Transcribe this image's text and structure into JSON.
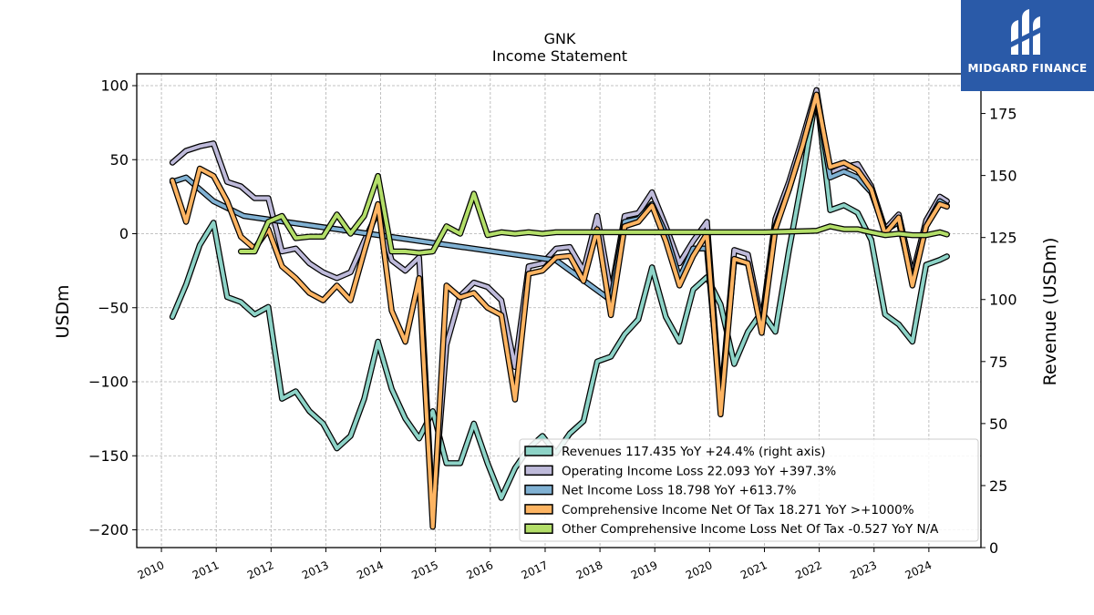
{
  "chart_data": {
    "type": "line",
    "title": "GNK",
    "subtitle": "Income Statement",
    "ylabel": "USDm",
    "y2label": "Revenue (USDm)",
    "ylim": [
      -212,
      108
    ],
    "y2lim": [
      0,
      191
    ],
    "yticks": [
      100,
      50,
      0,
      -50,
      -100,
      -150,
      -200
    ],
    "yticklabels": [
      "100",
      "50",
      "0",
      "−50",
      "−100",
      "−150",
      "−200"
    ],
    "y2ticks": [
      175,
      150,
      125,
      100,
      75,
      50,
      25,
      0
    ],
    "xlim": [
      2009.55,
      2024.95
    ],
    "xticks": [
      "2010",
      "2011",
      "2012",
      "2013",
      "2014",
      "2015",
      "2016",
      "2017",
      "2018",
      "2019",
      "2020",
      "2021",
      "2022",
      "2023",
      "2024"
    ],
    "grid": true,
    "legend_position": "lower right",
    "series": [
      {
        "name": "Revenues  117.435 YoY +24.4% (right axis)",
        "color": "#8dd3c7",
        "axis": "right",
        "x": [
          2010.2,
          2010.45,
          2010.7,
          2010.95,
          2011.2,
          2011.45,
          2011.7,
          2011.95,
          2012.2,
          2012.45,
          2012.7,
          2012.95,
          2013.2,
          2013.45,
          2013.7,
          2013.95,
          2014.2,
          2014.45,
          2014.7,
          2014.95,
          2015.2,
          2015.45,
          2015.7,
          2015.95,
          2016.2,
          2016.45,
          2016.7,
          2016.95,
          2017.2,
          2017.45,
          2017.7,
          2017.95,
          2018.2,
          2018.45,
          2018.7,
          2018.95,
          2019.2,
          2019.45,
          2019.7,
          2019.95,
          2020.2,
          2020.45,
          2020.7,
          2020.95,
          2021.2,
          2021.45,
          2021.7,
          2021.95,
          2022.2,
          2022.45,
          2022.7,
          2022.95,
          2023.2,
          2023.45,
          2023.7,
          2023.95,
          2024.2,
          2024.33
        ],
        "values": [
          93,
          106,
          122,
          131,
          101,
          99,
          94,
          97,
          60,
          63,
          55,
          50,
          40,
          45,
          60,
          83,
          64,
          52,
          44,
          55,
          34,
          34,
          50,
          34,
          20,
          32,
          40,
          45,
          38,
          46,
          51,
          75,
          77,
          86,
          92,
          113,
          93,
          83,
          104,
          109,
          98,
          74,
          87,
          95,
          87,
          120,
          150,
          183,
          136,
          138,
          135,
          124,
          94,
          90,
          83,
          114,
          116,
          117.4
        ]
      },
      {
        "name": "Operating Income Loss  22.093 YoY +397.3%",
        "color": "#bebada",
        "axis": "left",
        "x": [
          2010.2,
          2010.45,
          2010.7,
          2010.95,
          2011.2,
          2011.45,
          2011.7,
          2011.95,
          2012.2,
          2012.45,
          2012.7,
          2012.95,
          2013.2,
          2013.45,
          2013.7,
          2013.95,
          2014.2,
          2014.45,
          2014.7,
          2014.95,
          2015.2,
          2015.45,
          2015.7,
          2015.95,
          2016.2,
          2016.45,
          2016.7,
          2016.95,
          2017.2,
          2017.45,
          2017.7,
          2017.95,
          2018.2,
          2018.45,
          2018.7,
          2018.95,
          2019.2,
          2019.45,
          2019.7,
          2019.95,
          2020.2,
          2020.45,
          2020.7,
          2020.95,
          2021.2,
          2021.45,
          2021.7,
          2021.95,
          2022.2,
          2022.45,
          2022.7,
          2022.95,
          2023.2,
          2023.45,
          2023.7,
          2023.95,
          2024.2,
          2024.33
        ],
        "values": [
          48,
          56,
          59,
          61,
          35,
          32,
          24,
          24,
          -12,
          -10,
          -20,
          -26,
          -30,
          -26,
          -5,
          15,
          -18,
          -25,
          -16,
          -190,
          -75,
          -42,
          -33,
          -36,
          -45,
          -90,
          -22,
          -20,
          -10,
          -9,
          -25,
          12,
          -40,
          12,
          14,
          28,
          5,
          -20,
          -5,
          8,
          -115,
          -11,
          -14,
          -60,
          10,
          35,
          65,
          97,
          41,
          45,
          47,
          32,
          3,
          13,
          -28,
          9,
          25,
          22
        ]
      },
      {
        "name": "Net Income Loss  18.798 YoY +613.7%",
        "color": "#80b1d3",
        "axis": "left",
        "x": [
          2010.2,
          2010.45,
          2010.7,
          2010.95,
          2011.5,
          2017.2,
          2018.2,
          2018.45,
          2018.7,
          2018.95,
          2019.2,
          2019.45,
          2019.7,
          2019.95,
          2020.2,
          2020.45,
          2020.7,
          2020.95,
          2021.2,
          2021.45,
          2021.7,
          2021.95,
          2022.2,
          2022.45,
          2022.7,
          2022.95,
          2023.2,
          2023.45,
          2023.7,
          2023.95,
          2024.2,
          2024.33
        ],
        "values": [
          35,
          38,
          30,
          22,
          12,
          -18,
          -45,
          8,
          10,
          20,
          0,
          -30,
          -10,
          -10,
          -115,
          -18,
          -20,
          -65,
          5,
          30,
          60,
          92,
          38,
          42,
          38,
          28,
          2,
          8,
          -32,
          5,
          22,
          18.8
        ]
      },
      {
        "name": "Comprehensive Income Net Of Tax  18.271 YoY >+1000%",
        "color": "#fdb462",
        "axis": "left",
        "x": [
          2010.2,
          2010.45,
          2010.7,
          2010.95,
          2011.2,
          2011.45,
          2011.7,
          2011.95,
          2012.2,
          2012.45,
          2012.7,
          2012.95,
          2013.2,
          2013.45,
          2013.7,
          2013.95,
          2014.2,
          2014.45,
          2014.7,
          2014.95,
          2015.2,
          2015.45,
          2015.7,
          2015.95,
          2016.2,
          2016.45,
          2016.7,
          2016.95,
          2017.2,
          2017.45,
          2017.7,
          2017.95,
          2018.2,
          2018.45,
          2018.7,
          2018.95,
          2019.2,
          2019.45,
          2019.7,
          2019.95,
          2020.2,
          2020.45,
          2020.7,
          2020.95,
          2021.2,
          2021.45,
          2021.7,
          2021.95,
          2022.2,
          2022.45,
          2022.7,
          2022.95,
          2023.2,
          2023.45,
          2023.7,
          2023.95,
          2024.2,
          2024.33
        ],
        "values": [
          36,
          8,
          44,
          39,
          22,
          -2,
          -10,
          3,
          -22,
          -30,
          -40,
          -45,
          -35,
          -45,
          -12,
          20,
          -52,
          -73,
          -30,
          -198,
          -35,
          -43,
          -40,
          -50,
          -55,
          -112,
          -27,
          -25,
          -16,
          -15,
          -32,
          3,
          -55,
          5,
          8,
          19,
          -5,
          -35,
          -15,
          0,
          -122,
          -17,
          -20,
          -67,
          3,
          30,
          60,
          94,
          45,
          48,
          43,
          30,
          0,
          11,
          -35,
          5,
          20,
          18.3
        ]
      },
      {
        "name": "Other Comprehensive Income Loss Net Of Tax  -0.527 YoY N/A",
        "color": "#b3de69",
        "axis": "left",
        "x": [
          2011.45,
          2011.7,
          2011.95,
          2012.2,
          2012.45,
          2012.7,
          2012.95,
          2013.2,
          2013.45,
          2013.7,
          2013.95,
          2014.2,
          2014.45,
          2014.7,
          2014.95,
          2015.2,
          2015.45,
          2015.7,
          2015.95,
          2016.2,
          2016.45,
          2016.7,
          2016.95,
          2017.2,
          2017.5,
          2018.0,
          2019.0,
          2020.0,
          2021.0,
          2021.95,
          2022.2,
          2022.45,
          2022.7,
          2022.95,
          2023.2,
          2023.45,
          2023.7,
          2023.95,
          2024.2,
          2024.33
        ],
        "values": [
          -12,
          -12,
          8,
          12,
          -3,
          -2,
          -2,
          13,
          0,
          12,
          39,
          -12,
          -12,
          -13,
          -12,
          5,
          0,
          27,
          -1,
          1,
          0,
          1,
          0,
          1,
          1,
          1,
          1,
          1,
          1,
          2,
          5,
          3,
          3,
          1,
          -1,
          0,
          -1,
          -1,
          1,
          -0.5
        ]
      }
    ]
  },
  "logo": {
    "text": "MIDGARD FINANCE",
    "icon": "midgard-finance-logo-icon",
    "background": "#2a5aa8"
  }
}
